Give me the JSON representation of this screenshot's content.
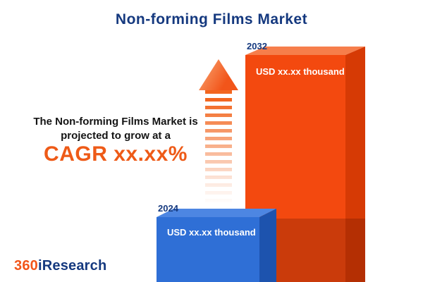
{
  "title": "Non-forming Films Market",
  "tagline": {
    "line1": "The Non-forming Films Market is",
    "line2": "projected to grow at a",
    "cagr": "CAGR xx.xx%"
  },
  "chart_data": {
    "type": "bar",
    "title": "Non-forming Films Market",
    "orientation": "vertical",
    "categories": [
      "2024",
      "2032"
    ],
    "values": [
      null,
      null
    ],
    "value_labels": [
      "USD xx.xx thousand",
      "USD xx.xx thousand"
    ],
    "bar_colors": [
      "#2f6fd6",
      "#f3490f"
    ],
    "legend_position": "none",
    "grid": false
  },
  "logo": {
    "prefix": "360",
    "suffix": "iResearch"
  },
  "colors": {
    "title_navy": "#15397f",
    "accent_orange": "#f2551a",
    "bar_blue": "#2f6fd6",
    "bar_blue_side": "#1d53ae",
    "bar_orange": "#f3490f",
    "bar_orange_side": "#d63a05",
    "text_black": "#141414",
    "background": "#ffffff"
  }
}
